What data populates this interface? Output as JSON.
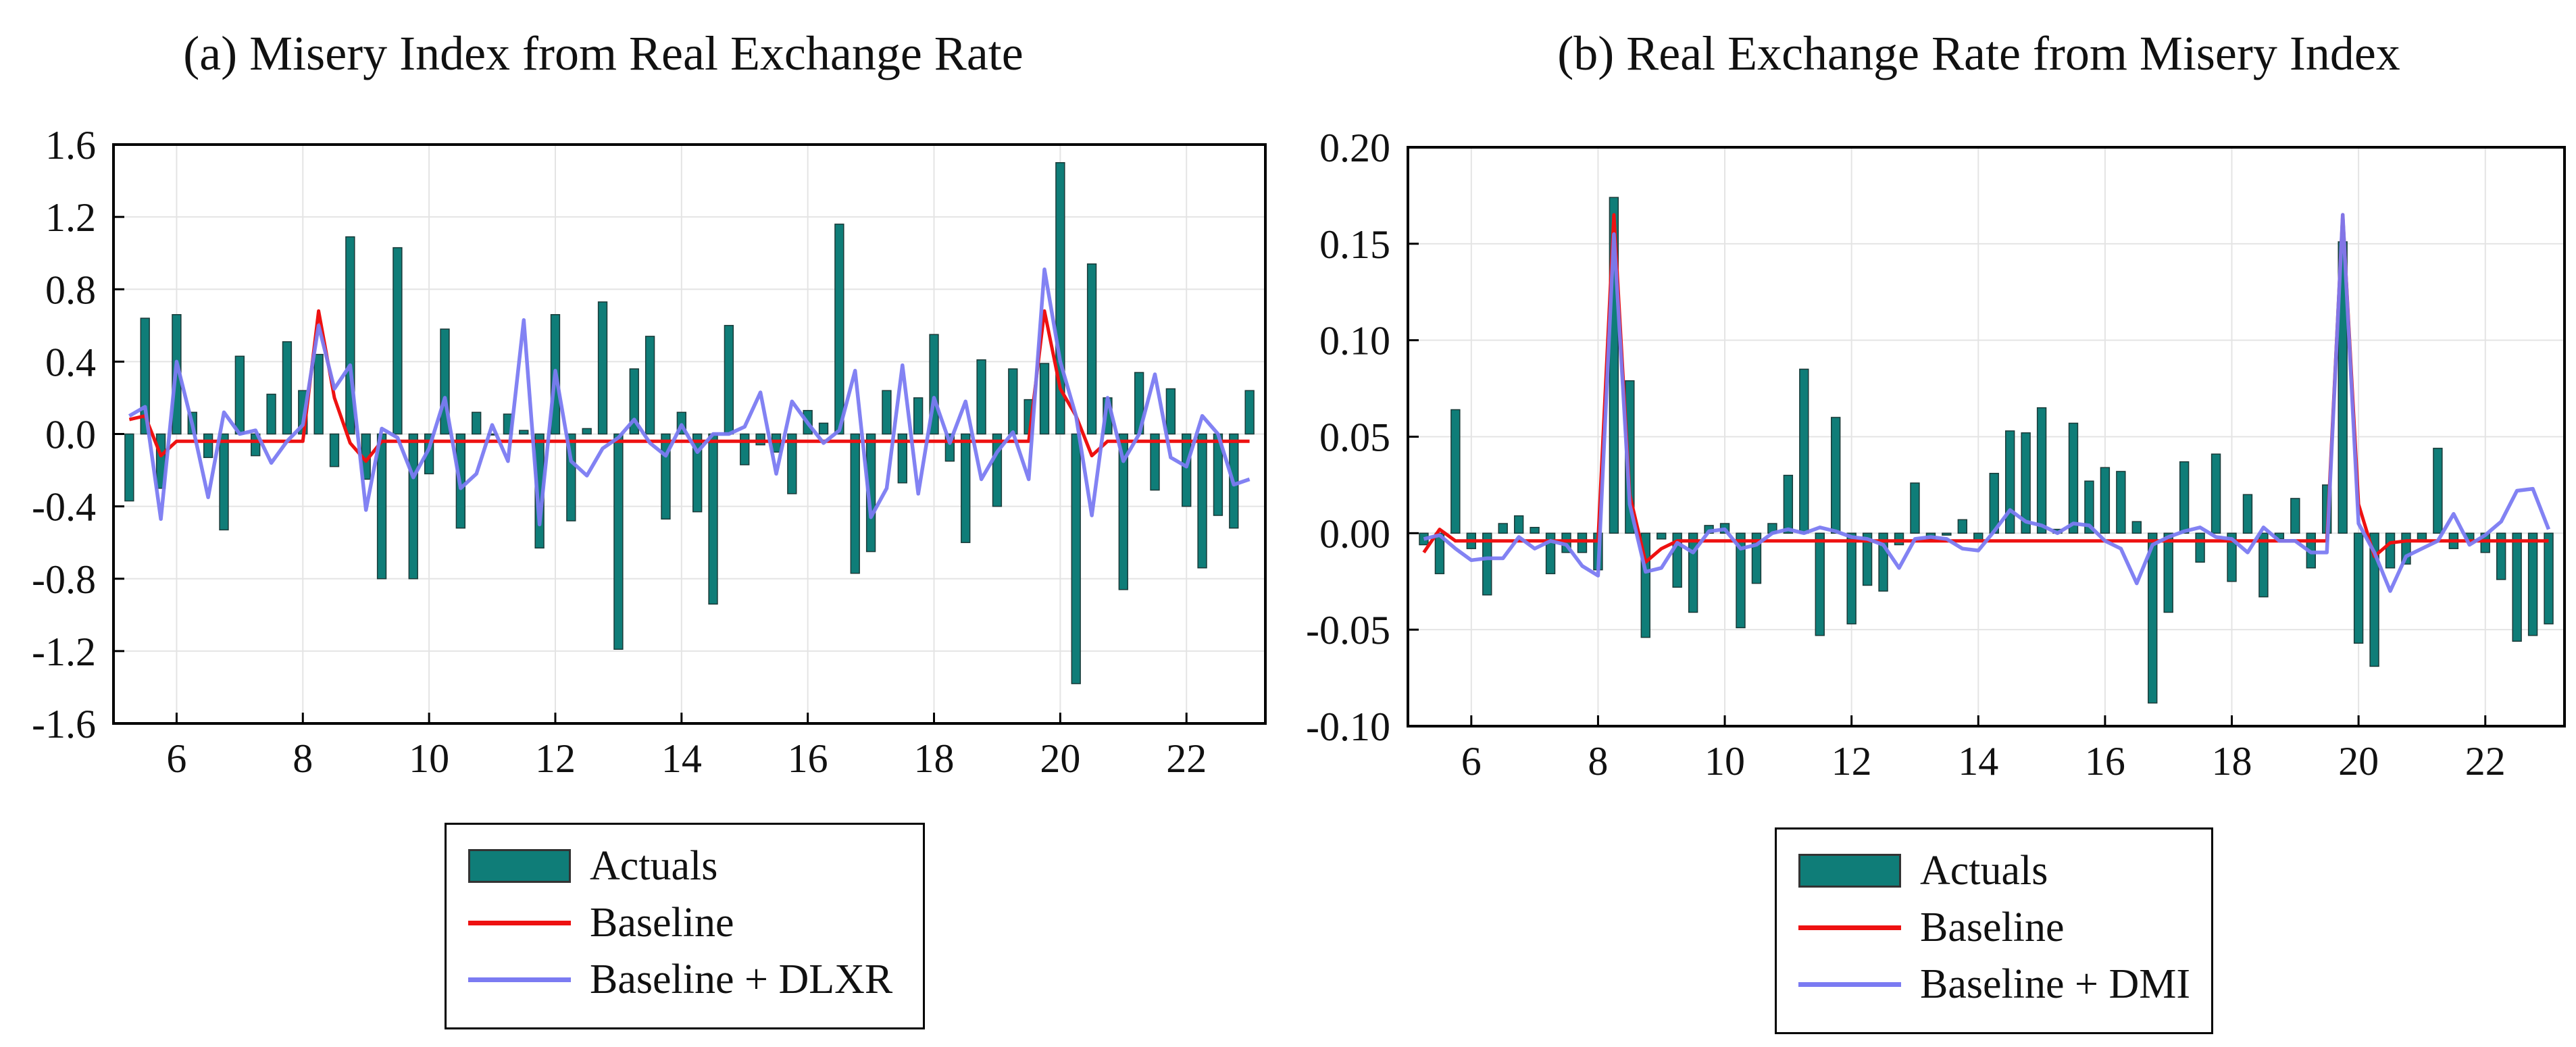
{
  "colors": {
    "actuals": "#0f7d78",
    "baseline": "#ee1111",
    "dlxr": "#7b7bf2"
  },
  "chart_data": [
    {
      "type": "bar",
      "id": "a",
      "title": "(a) Misery Index from Real Exchange Rate",
      "xlabel": "",
      "ylabel": "",
      "xlim": [
        5,
        23.25
      ],
      "ylim": [
        -1.6,
        1.6
      ],
      "x_ticks": [
        "6",
        "8",
        "10",
        "12",
        "14",
        "16",
        "18",
        "20",
        "22"
      ],
      "y_ticks": [
        "-1.6",
        "-1.2",
        "-0.8",
        "-0.4",
        "0.0",
        "0.4",
        "0.8",
        "1.2",
        "1.6"
      ],
      "grid": true,
      "legend": [
        "Actuals",
        "Baseline",
        "Baseline + DLXR"
      ],
      "legend_position": "below",
      "series": [
        {
          "name": "Actuals",
          "type": "bar",
          "values": [
            -0.37,
            0.64,
            -0.3,
            0.66,
            0.12,
            -0.13,
            -0.53,
            0.43,
            -0.12,
            0.22,
            0.51,
            0.24,
            0.44,
            -0.18,
            1.09,
            -0.25,
            -0.8,
            1.03,
            -0.8,
            -0.22,
            0.58,
            -0.52,
            0.12,
            0.0,
            0.11,
            0.02,
            -0.63,
            0.66,
            -0.48,
            0.03,
            0.73,
            -1.19,
            0.36,
            0.54,
            -0.47,
            0.12,
            -0.43,
            -0.94,
            0.6,
            -0.17,
            -0.06,
            -0.1,
            -0.33,
            0.13,
            0.06,
            1.16,
            -0.77,
            -0.65,
            0.24,
            -0.27,
            0.2,
            0.55,
            -0.15,
            -0.6,
            0.41,
            -0.4,
            0.36,
            0.19,
            0.39,
            1.5,
            -1.38,
            0.94,
            0.2,
            -0.86,
            0.34,
            -0.31,
            0.25,
            -0.4,
            -0.74,
            -0.45,
            -0.52,
            0.24
          ]
        },
        {
          "name": "Baseline",
          "type": "line",
          "values": [
            0.08,
            0.1,
            -0.12,
            -0.04,
            -0.04,
            -0.04,
            -0.04,
            -0.04,
            -0.04,
            -0.04,
            -0.04,
            -0.04,
            0.68,
            0.2,
            -0.05,
            -0.15,
            -0.04,
            -0.04,
            -0.04,
            -0.04,
            -0.04,
            -0.04,
            -0.04,
            -0.04,
            -0.04,
            -0.04,
            -0.04,
            -0.04,
            -0.04,
            -0.04,
            -0.04,
            -0.04,
            -0.04,
            -0.04,
            -0.04,
            -0.04,
            -0.04,
            -0.04,
            -0.04,
            -0.04,
            -0.04,
            -0.04,
            -0.04,
            -0.04,
            -0.04,
            -0.04,
            -0.04,
            -0.04,
            -0.04,
            -0.04,
            -0.04,
            -0.04,
            -0.04,
            -0.04,
            -0.04,
            -0.04,
            -0.04,
            -0.04,
            0.68,
            0.25,
            0.1,
            -0.12,
            -0.04,
            -0.04,
            -0.04,
            -0.04,
            -0.04,
            -0.04,
            -0.04,
            -0.04,
            -0.04,
            -0.04
          ]
        },
        {
          "name": "Baseline + DLXR",
          "type": "line",
          "values": [
            0.1,
            0.15,
            -0.47,
            0.4,
            0.05,
            -0.35,
            0.12,
            0.0,
            0.02,
            -0.16,
            -0.04,
            0.05,
            0.6,
            0.25,
            0.38,
            -0.42,
            0.03,
            -0.02,
            -0.24,
            -0.08,
            0.2,
            -0.3,
            -0.22,
            0.05,
            -0.15,
            0.63,
            -0.5,
            0.35,
            -0.15,
            -0.23,
            -0.08,
            -0.02,
            0.08,
            -0.05,
            -0.12,
            0.05,
            -0.1,
            0.0,
            0.0,
            0.04,
            0.23,
            -0.22,
            0.18,
            0.06,
            -0.05,
            0.02,
            0.35,
            -0.46,
            -0.3,
            0.38,
            -0.33,
            0.2,
            -0.05,
            0.18,
            -0.25,
            -0.1,
            0.01,
            -0.25,
            0.91,
            0.4,
            0.1,
            -0.45,
            0.2,
            -0.15,
            0.0,
            0.33,
            -0.13,
            -0.18,
            0.1,
            0.0,
            -0.28,
            -0.25
          ]
        }
      ]
    },
    {
      "type": "bar",
      "id": "b",
      "title": "(b) Real Exchange Rate from Misery Index",
      "xlabel": "",
      "ylabel": "",
      "xlim": [
        5,
        23.25
      ],
      "ylim": [
        -0.1,
        0.2
      ],
      "x_ticks": [
        "6",
        "8",
        "10",
        "12",
        "14",
        "16",
        "18",
        "20",
        "22"
      ],
      "y_ticks": [
        "-0.10",
        "-0.05",
        "0.00",
        "0.05",
        "0.10",
        "0.15",
        "0.20"
      ],
      "grid": true,
      "legend": [
        "Actuals",
        "Baseline",
        "Baseline + DMI"
      ],
      "legend_position": "below",
      "series": [
        {
          "name": "Actuals",
          "type": "bar",
          "values": [
            -0.006,
            -0.021,
            0.064,
            -0.008,
            -0.032,
            0.005,
            0.009,
            0.003,
            -0.021,
            -0.01,
            -0.01,
            -0.019,
            0.174,
            0.079,
            -0.054,
            -0.003,
            -0.028,
            -0.041,
            0.004,
            0.005,
            -0.049,
            -0.026,
            0.005,
            0.03,
            0.085,
            -0.053,
            0.06,
            -0.047,
            -0.027,
            -0.03,
            -0.006,
            0.026,
            -0.003,
            -0.001,
            0.007,
            -0.004,
            0.031,
            0.053,
            0.052,
            0.065,
            0.002,
            0.057,
            0.027,
            0.034,
            0.032,
            0.006,
            -0.088,
            -0.041,
            0.037,
            -0.015,
            0.041,
            -0.025,
            0.02,
            -0.033,
            -0.003,
            0.018,
            -0.018,
            0.025,
            0.151,
            -0.057,
            -0.069,
            -0.018,
            -0.016,
            -0.004,
            0.044,
            -0.008,
            -0.004,
            -0.01,
            -0.024,
            -0.056,
            -0.053,
            -0.047
          ]
        },
        {
          "name": "Baseline",
          "type": "line",
          "values": [
            -0.01,
            0.002,
            -0.004,
            -0.004,
            -0.004,
            -0.004,
            -0.004,
            -0.004,
            -0.004,
            -0.004,
            -0.004,
            -0.004,
            0.165,
            0.02,
            -0.015,
            -0.008,
            -0.004,
            -0.004,
            -0.004,
            -0.004,
            -0.004,
            -0.004,
            -0.004,
            -0.004,
            -0.004,
            -0.004,
            -0.004,
            -0.004,
            -0.004,
            -0.004,
            -0.004,
            -0.004,
            -0.004,
            -0.004,
            -0.004,
            -0.004,
            -0.004,
            -0.004,
            -0.004,
            -0.004,
            -0.004,
            -0.004,
            -0.004,
            -0.004,
            -0.004,
            -0.004,
            -0.004,
            -0.004,
            -0.004,
            -0.004,
            -0.004,
            -0.004,
            -0.004,
            -0.004,
            -0.004,
            -0.004,
            -0.004,
            -0.004,
            0.165,
            0.015,
            -0.012,
            -0.005,
            -0.004,
            -0.004,
            -0.004,
            -0.004,
            -0.004,
            -0.004,
            -0.004,
            -0.004,
            -0.004,
            -0.004
          ]
        },
        {
          "name": "Baseline + DMI",
          "type": "line",
          "values": [
            -0.003,
            -0.001,
            -0.008,
            -0.014,
            -0.013,
            -0.013,
            -0.002,
            -0.008,
            -0.004,
            -0.006,
            -0.017,
            -0.022,
            0.155,
            0.015,
            -0.02,
            -0.018,
            -0.005,
            -0.01,
            0.001,
            0.002,
            -0.008,
            -0.006,
            0.0,
            0.002,
            0.0,
            0.003,
            0.001,
            -0.002,
            -0.003,
            -0.006,
            -0.018,
            -0.003,
            -0.002,
            -0.003,
            -0.008,
            -0.009,
            0.001,
            0.012,
            0.006,
            0.004,
            0.0,
            0.005,
            0.004,
            -0.004,
            -0.008,
            -0.026,
            -0.006,
            -0.002,
            0.001,
            0.003,
            -0.002,
            -0.003,
            -0.01,
            0.003,
            -0.004,
            -0.004,
            -0.01,
            -0.01,
            0.165,
            0.005,
            -0.01,
            -0.03,
            -0.012,
            -0.008,
            -0.004,
            0.01,
            -0.006,
            -0.001,
            0.006,
            0.022,
            0.023,
            0.002
          ]
        }
      ]
    }
  ]
}
